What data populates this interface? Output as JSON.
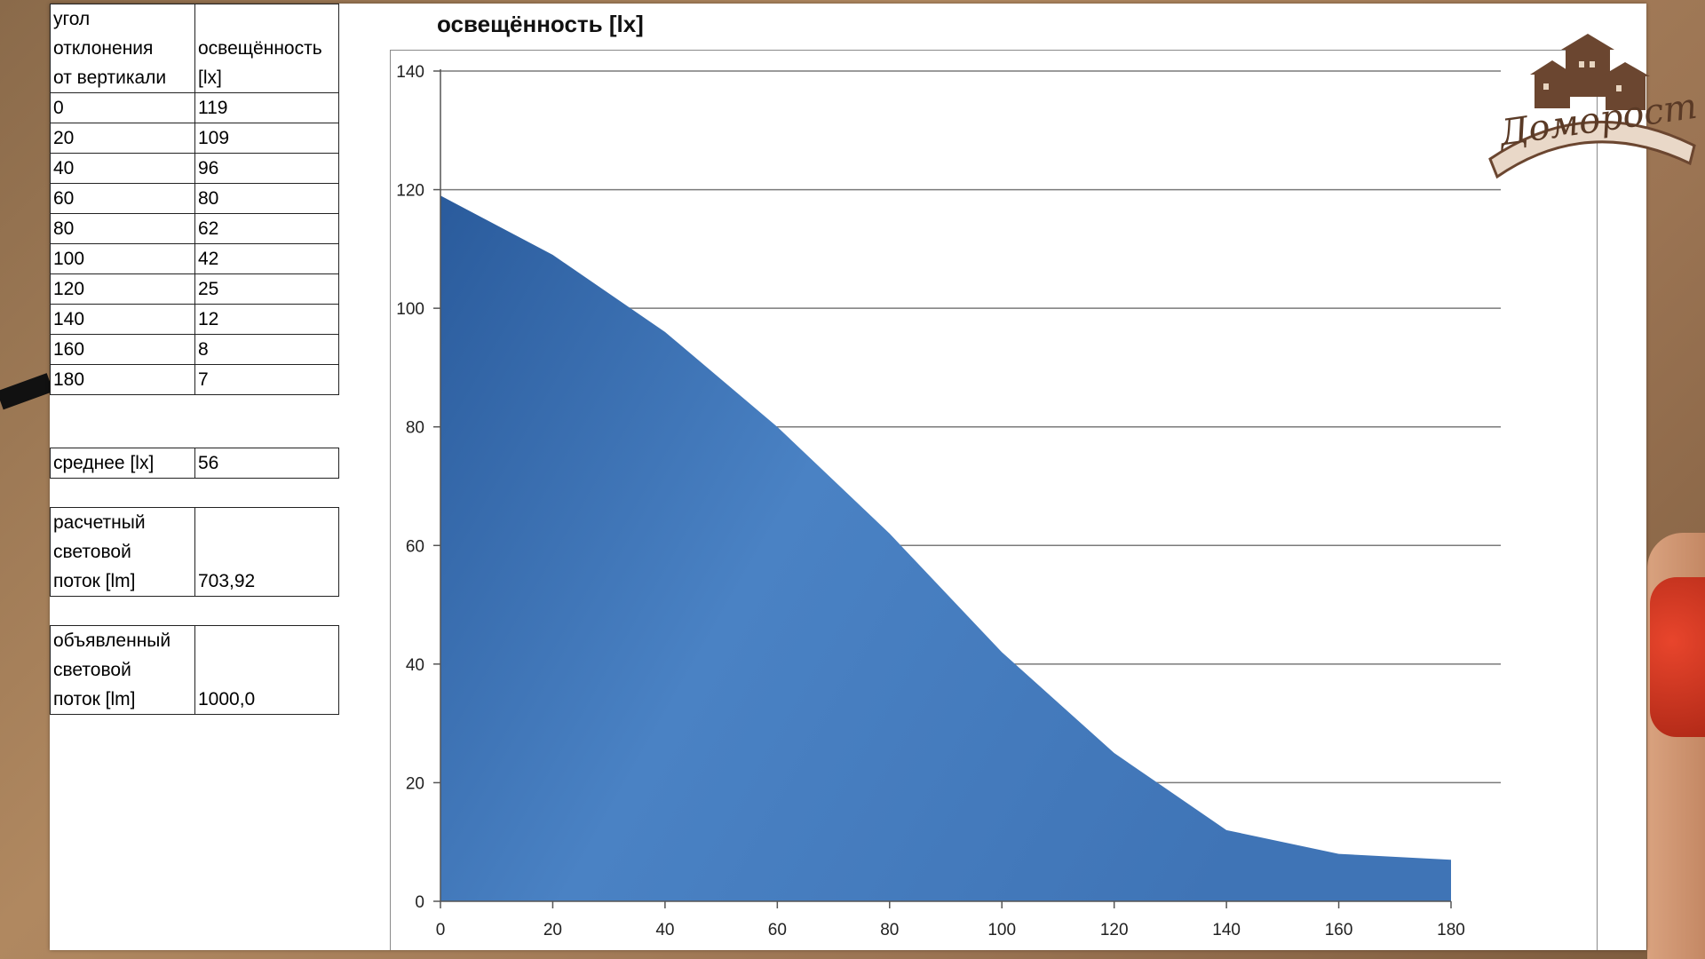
{
  "table": {
    "header": {
      "col1": [
        "угол",
        "отклонения",
        "от вертикали"
      ],
      "col2": [
        "",
        "освещённость",
        "[lx]"
      ]
    },
    "rows": [
      {
        "angle": "0",
        "lux": "119"
      },
      {
        "angle": "20",
        "lux": "109"
      },
      {
        "angle": "40",
        "lux": "96"
      },
      {
        "angle": "60",
        "lux": "80"
      },
      {
        "angle": "80",
        "lux": "62"
      },
      {
        "angle": "100",
        "lux": "42"
      },
      {
        "angle": "120",
        "lux": "25"
      },
      {
        "angle": "140",
        "lux": "12"
      },
      {
        "angle": "160",
        "lux": "8"
      },
      {
        "angle": "180",
        "lux": "7"
      }
    ]
  },
  "summary": {
    "mean_label": "среднее  [lx]",
    "mean_value": "56",
    "calc_label": [
      "расчетный",
      "световой",
      "поток  [lm]"
    ],
    "calc_value": "703,92",
    "declared_label": [
      "объявленный",
      "световой",
      "поток  [lm]"
    ],
    "declared_value": "1000,0"
  },
  "logo": {
    "text": "Доморост"
  },
  "chart_data": {
    "type": "area",
    "title": "освещённость [lx]",
    "xlabel": "",
    "ylabel": "",
    "x": [
      0,
      20,
      40,
      60,
      80,
      100,
      120,
      140,
      160,
      180
    ],
    "series": [
      {
        "values": [
          119,
          109,
          96,
          80,
          62,
          42,
          25,
          12,
          8,
          7
        ]
      }
    ],
    "xlim": [
      0,
      180
    ],
    "ylim": [
      0,
      140
    ],
    "xticks": [
      0,
      20,
      40,
      60,
      80,
      100,
      120,
      140,
      160,
      180
    ],
    "yticks": [
      0,
      20,
      40,
      60,
      80,
      100,
      120,
      140
    ],
    "grid": "horizontal",
    "legend": "none",
    "colors": {
      "fill_dark": "#2a5b9c",
      "fill_light": "#4a82c4",
      "grid": "#7a7a7a"
    }
  }
}
